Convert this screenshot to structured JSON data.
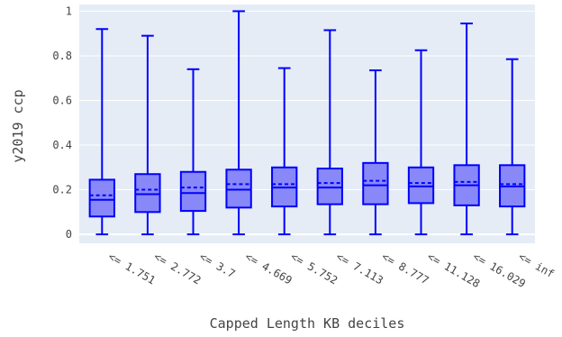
{
  "chart_data": {
    "type": "box",
    "title": "",
    "xlabel": "Capped Length KB deciles",
    "ylabel": "y2019 ccp",
    "ylim": [
      -0.04,
      1.03
    ],
    "yticks": [
      0,
      0.2,
      0.4,
      0.6,
      0.8,
      1
    ],
    "ytick_labels": [
      "0",
      "0.2",
      "0.4",
      "0.6",
      "0.8",
      "1"
    ],
    "grid": true,
    "categories": [
      "<= 1.751",
      "<= 2.772",
      "<= 3.7",
      "<= 4.669",
      "<= 5.752",
      "<= 7.113",
      "<= 8.777",
      "<= 11.128",
      "<= 16.029",
      "<= inf"
    ],
    "boxes": [
      {
        "min": 0.0,
        "q1": 0.08,
        "median": 0.155,
        "mean": 0.175,
        "q3": 0.245,
        "max": 0.92
      },
      {
        "min": 0.0,
        "q1": 0.1,
        "median": 0.18,
        "mean": 0.2,
        "q3": 0.27,
        "max": 0.89
      },
      {
        "min": 0.0,
        "q1": 0.105,
        "median": 0.185,
        "mean": 0.21,
        "q3": 0.28,
        "max": 0.74
      },
      {
        "min": 0.0,
        "q1": 0.12,
        "median": 0.2,
        "mean": 0.225,
        "q3": 0.29,
        "max": 1.0
      },
      {
        "min": 0.0,
        "q1": 0.125,
        "median": 0.21,
        "mean": 0.225,
        "q3": 0.3,
        "max": 0.745
      },
      {
        "min": 0.0,
        "q1": 0.135,
        "median": 0.21,
        "mean": 0.23,
        "q3": 0.295,
        "max": 0.915
      },
      {
        "min": 0.0,
        "q1": 0.135,
        "median": 0.22,
        "mean": 0.24,
        "q3": 0.32,
        "max": 0.735
      },
      {
        "min": 0.0,
        "q1": 0.14,
        "median": 0.215,
        "mean": 0.23,
        "q3": 0.3,
        "max": 0.825
      },
      {
        "min": 0.0,
        "q1": 0.13,
        "median": 0.22,
        "mean": 0.235,
        "q3": 0.31,
        "max": 0.945
      },
      {
        "min": 0.0,
        "q1": 0.125,
        "median": 0.215,
        "mean": 0.225,
        "q3": 0.31,
        "max": 0.785
      }
    ],
    "colors": {
      "plot_bg": "#E5ECF6",
      "grid": "#FFFFFF",
      "box_line": "#0000FF",
      "box_fill": "#7D7DFA",
      "tick_text": "#444444",
      "label_text": "#444444"
    }
  }
}
